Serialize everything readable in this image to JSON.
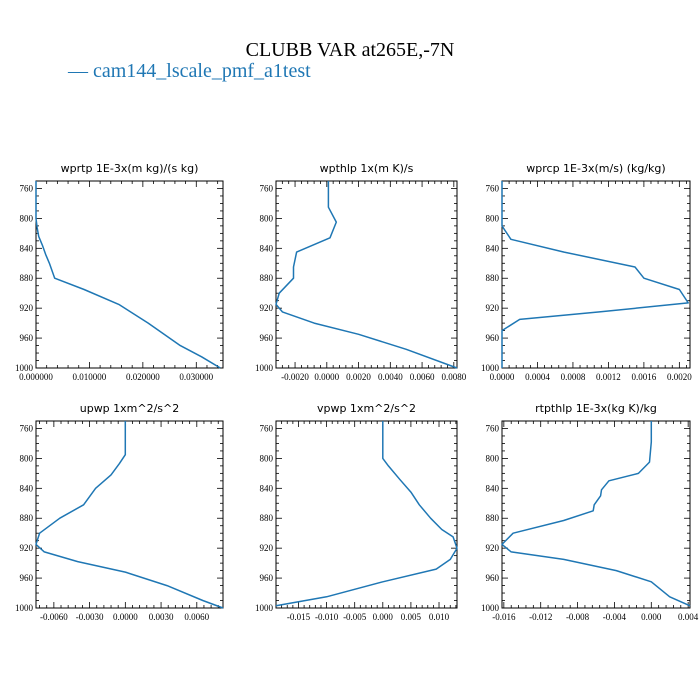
{
  "title": "CLUBB VAR at265E,-7N",
  "legend_label": "— cam144_lscale_pmf_a1test",
  "colors": {
    "series": "#1f77b4",
    "axes": "#000000"
  },
  "chart_data": [
    {
      "type": "line",
      "title": "wprtp   1E-3x(m kg)/(s kg)",
      "xlim": [
        0.0,
        0.035
      ],
      "ylim": [
        1000,
        750
      ],
      "xticks": [
        0.0,
        0.01,
        0.02,
        0.03
      ],
      "xtick_labels": [
        "0.000000",
        "0.010000",
        "0.020000",
        "0.030000"
      ],
      "yticks": [
        760,
        800,
        840,
        880,
        920,
        960,
        1000
      ],
      "series": [
        {
          "x": [
            0.0,
            0.0,
            0.0002,
            0.0005,
            0.0012,
            0.0018,
            0.0025,
            0.0035,
            0.009,
            0.0155,
            0.021,
            0.027,
            0.031,
            0.0345
          ],
          "y": [
            750,
            800,
            812,
            824,
            836,
            848,
            860,
            880,
            895,
            915,
            940,
            970,
            985,
            1000
          ]
        }
      ]
    },
    {
      "type": "line",
      "title": "wpthlp   1x(m K)/s",
      "xlim": [
        -0.0032,
        0.0082
      ],
      "ylim": [
        1000,
        750
      ],
      "xticks": [
        -0.002,
        0.0,
        0.002,
        0.004,
        0.006,
        0.008
      ],
      "xtick_labels": [
        "-0.0020",
        "0.0000",
        "0.0020",
        "0.0040",
        "0.0060",
        "0.0080"
      ],
      "yticks": [
        760,
        800,
        840,
        880,
        920,
        960,
        1000
      ],
      "series": [
        {
          "x": [
            0.0001,
            0.0001,
            0.0006,
            0.0002,
            -0.0019,
            -0.0021,
            -0.0021,
            -0.003,
            -0.0032,
            -0.0028,
            -0.0008,
            0.002,
            0.005,
            0.0082
          ],
          "y": [
            750,
            785,
            805,
            826,
            845,
            865,
            880,
            900,
            915,
            925,
            940,
            955,
            975,
            1000
          ]
        }
      ]
    },
    {
      "type": "line",
      "title": "wprcp   1E-3x(m/s) (kg/kg)",
      "xlim": [
        0.0,
        0.00212
      ],
      "ylim": [
        1000,
        750
      ],
      "xticks": [
        0.0,
        0.0004,
        0.0008,
        0.0012,
        0.0016,
        0.002
      ],
      "xtick_labels": [
        "0.0000",
        "0.0004",
        "0.0008",
        "0.0012",
        "0.0016",
        "0.0020"
      ],
      "yticks": [
        760,
        800,
        840,
        880,
        920,
        960,
        1000
      ],
      "series": [
        {
          "x": [
            0.0,
            0.0,
            0.0001,
            0.0007,
            0.0015,
            0.0016,
            0.002,
            0.0021,
            0.0011,
            0.0002,
            0.0,
            0.0
          ],
          "y": [
            750,
            810,
            828,
            845,
            865,
            880,
            895,
            913,
            925,
            935,
            950,
            1000
          ]
        }
      ]
    },
    {
      "type": "line",
      "title": "upwp   1xm^2/s^2",
      "xlim": [
        -0.0075,
        0.0082
      ],
      "ylim": [
        1000,
        750
      ],
      "xticks": [
        -0.006,
        -0.003,
        0.0,
        0.003,
        0.006
      ],
      "xtick_labels": [
        "-0.0060",
        "-0.0030",
        "0.0000",
        "0.0030",
        "0.0060"
      ],
      "yticks": [
        760,
        800,
        840,
        880,
        920,
        960,
        1000
      ],
      "series": [
        {
          "x": [
            0.0,
            0.0,
            -0.0005,
            -0.0012,
            -0.0025,
            -0.0035,
            -0.0055,
            -0.0072,
            -0.0075,
            -0.0068,
            -0.004,
            0.0,
            0.0035,
            0.0065,
            0.0082
          ],
          "y": [
            750,
            795,
            807,
            822,
            840,
            862,
            880,
            900,
            915,
            925,
            938,
            952,
            970,
            990,
            1000
          ]
        }
      ]
    },
    {
      "type": "line",
      "title": "vpwp   1xm^2/s^2",
      "xlim": [
        -0.019,
        0.0132
      ],
      "ylim": [
        1000,
        750
      ],
      "xticks": [
        -0.015,
        -0.01,
        -0.005,
        0.0,
        0.005,
        0.01
      ],
      "xtick_labels": [
        "-0.015",
        "-0.010",
        "-0.005",
        "0.000",
        "0.005",
        "0.010"
      ],
      "yticks": [
        760,
        800,
        840,
        880,
        920,
        960,
        1000
      ],
      "series": [
        {
          "x": [
            0.0,
            0.0,
            0.001,
            0.003,
            0.005,
            0.0065,
            0.0085,
            0.0105,
            0.0125,
            0.0132,
            0.012,
            0.0095,
            0.0,
            -0.01,
            -0.019
          ],
          "y": [
            750,
            800,
            810,
            828,
            845,
            862,
            880,
            895,
            905,
            920,
            935,
            948,
            965,
            985,
            997
          ]
        }
      ]
    },
    {
      "type": "line",
      "title": "rtpthlp   1E-3x(kg K)/kg",
      "xlim": [
        -0.0162,
        0.0042
      ],
      "ylim": [
        1000,
        750
      ],
      "xticks": [
        -0.016,
        -0.012,
        -0.008,
        -0.004,
        0.0,
        0.004
      ],
      "xtick_labels": [
        "-0.016",
        "-0.012",
        "-0.008",
        "-0.004",
        "0.000",
        "0.004"
      ],
      "yticks": [
        760,
        800,
        840,
        880,
        920,
        960,
        1000
      ],
      "series": [
        {
          "x": [
            0.0,
            0.0,
            -0.0002,
            -0.0014,
            -0.0046,
            -0.0054,
            -0.0055,
            -0.0062,
            -0.0063,
            -0.0095,
            -0.015,
            -0.0162,
            -0.0152,
            -0.0095,
            -0.0038,
            0.0,
            0.002,
            0.0042
          ],
          "y": [
            750,
            778,
            805,
            820,
            830,
            842,
            850,
            862,
            870,
            883,
            900,
            915,
            925,
            935,
            950,
            965,
            985,
            997
          ]
        }
      ]
    }
  ]
}
